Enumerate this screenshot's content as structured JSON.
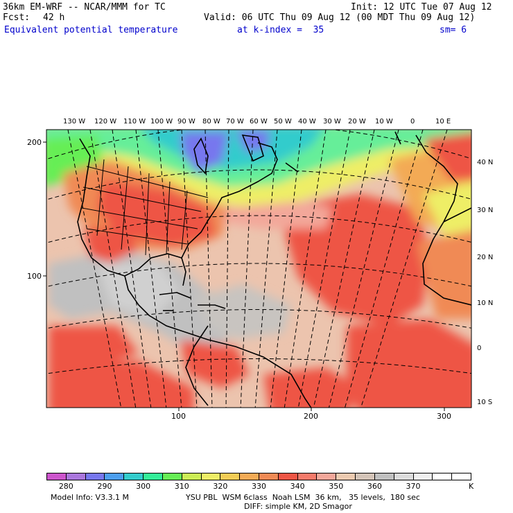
{
  "header": {
    "model": "36km EM-WRF -- NCAR/MMM for TC",
    "init": "Init: 12 UTC Tue 07 Aug 12",
    "fcst_label": "Fcst:",
    "fcst_value": "42 h",
    "valid": "Valid: 06 UTC Thu 09 Aug 12 (00 MDT Thu 09 Aug 12)",
    "field": "Equivalent potential temperature",
    "level": "at k-index =  35",
    "smooth": "sm= 6"
  },
  "map": {
    "top_lon_labels": [
      "130 W",
      "120 W",
      "110 W",
      "100 W",
      "90 W",
      "80 W",
      "70 W",
      "60 W",
      "50 W",
      "40 W",
      "30 W",
      "20 W",
      "10 W",
      "0",
      "10 E"
    ],
    "right_lat_labels": [
      "40 N",
      "30 N",
      "20 N",
      "10 N",
      "0",
      "10 S"
    ],
    "left_grid_labels": [
      "200",
      "100"
    ],
    "bottom_grid_labels": [
      "100",
      "200",
      "300"
    ]
  },
  "colorbar": {
    "colors": [
      "#cc55cc",
      "#aa77dd",
      "#7777ee",
      "#4c9eee",
      "#33cccc",
      "#33ee99",
      "#66ee55",
      "#ccee55",
      "#eeee66",
      "#f3cc55",
      "#f3aa55",
      "#f08a55",
      "#ee5545",
      "#f47a6a",
      "#f3a79a",
      "#eccab0",
      "#d4c4b8",
      "#c0c0c0",
      "#dcdcdc",
      "#f0f0f0",
      "#ffffff",
      "#ffffff"
    ],
    "labels": [
      "280",
      "290",
      "300",
      "310",
      "320",
      "330",
      "340",
      "350",
      "360",
      "370"
    ],
    "unit": "K"
  },
  "footer": {
    "line1_left": "Model Info: V3.3.1 M",
    "line1_right": "YSU PBL  WSM 6class  Noah LSM  36 km,   35 levels,  180 sec",
    "line2": "DIFF: simple KM, 2D Smagor"
  }
}
